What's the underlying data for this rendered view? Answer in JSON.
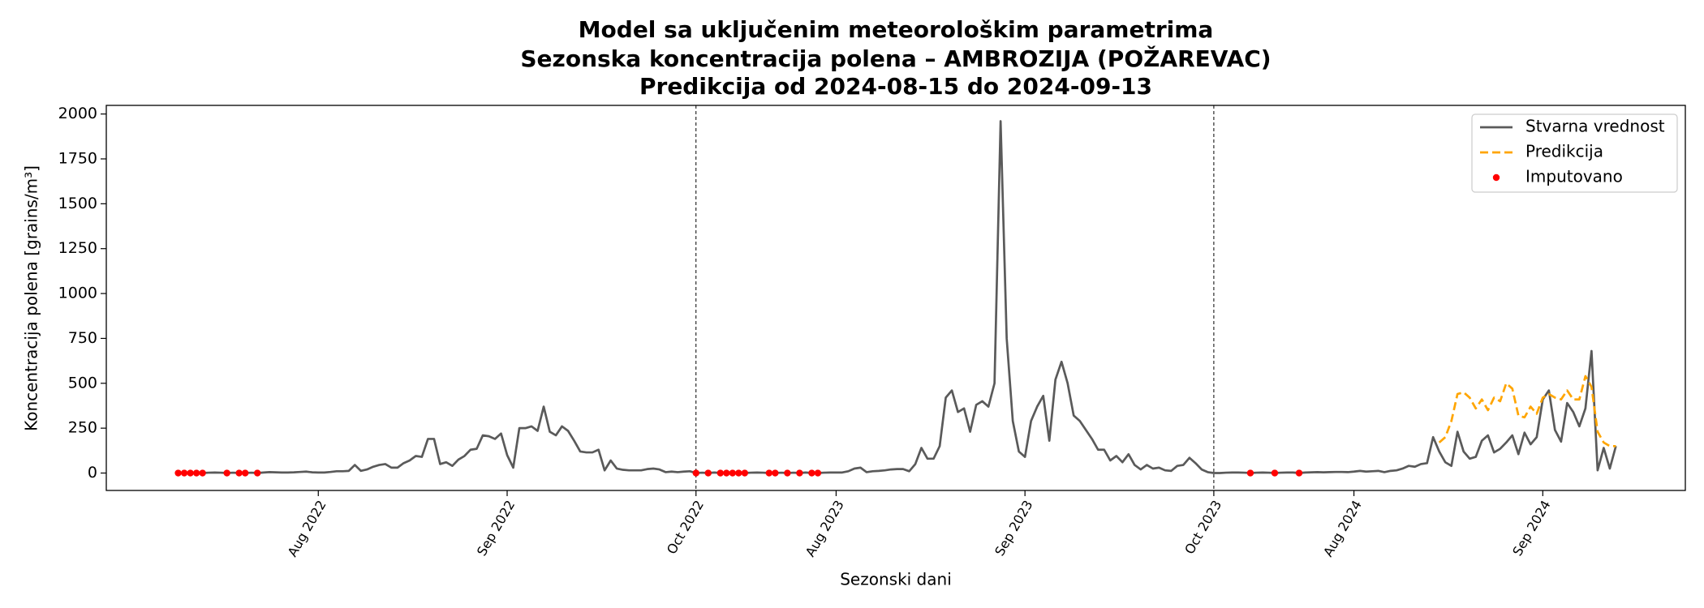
{
  "chart_data": {
    "type": "line",
    "title_lines": [
      "Model sa uključenim meteorološkim parametrima",
      "Sezonska koncentracija polena – AMBROZIJA (POŽAREVAC)",
      "Predikcija od 2024-08-15 do 2024-09-13"
    ],
    "x_label": "Sezonski dani",
    "y_label": "Koncentracija polena [grains/m³]",
    "xlim": [
      -11.8,
      247.4
    ],
    "ylim": [
      -97,
      2048
    ],
    "xticks": [
      {
        "value": 23,
        "label": "Aug 2022"
      },
      {
        "value": 54,
        "label": "Sep 2022"
      },
      {
        "value": 85,
        "label": "Oct 2022"
      },
      {
        "value": 108,
        "label": "Aug 2023"
      },
      {
        "value": 139,
        "label": "Sep 2023"
      },
      {
        "value": 170,
        "label": "Oct 2023"
      },
      {
        "value": 193,
        "label": "Aug 2024"
      },
      {
        "value": 224,
        "label": "Sep 2024"
      }
    ],
    "yticks": [
      0,
      250,
      500,
      750,
      1000,
      1250,
      1500,
      1750,
      2000
    ],
    "vlines": [
      85,
      170
    ],
    "legend": "upper right",
    "series": [
      {
        "name": "Stvarna vrednost",
        "type": "line",
        "color": "#5a5a5a",
        "x": [
          0,
          1,
          2,
          3,
          4,
          5,
          6,
          7,
          8,
          9,
          10,
          11,
          12,
          13,
          14,
          15,
          16,
          17,
          18,
          19,
          20,
          21,
          22,
          23,
          24,
          25,
          26,
          27,
          28,
          29,
          30,
          31,
          32,
          33,
          34,
          35,
          36,
          37,
          38,
          39,
          40,
          41,
          42,
          43,
          44,
          45,
          46,
          47,
          48,
          49,
          50,
          51,
          52,
          53,
          54,
          55,
          56,
          57,
          58,
          59,
          60,
          61,
          62,
          63,
          64,
          65,
          66,
          67,
          68,
          69,
          70,
          71,
          72,
          73,
          74,
          75,
          76,
          77,
          78,
          79,
          80,
          81,
          82,
          83,
          84,
          85,
          86,
          87,
          88,
          89,
          90,
          91,
          92,
          93,
          94,
          95,
          96,
          97,
          98,
          99,
          100,
          101,
          102,
          103,
          104,
          105,
          106,
          107,
          108,
          109,
          110,
          111,
          112,
          113,
          114,
          115,
          116,
          117,
          118,
          119,
          120,
          121,
          122,
          123,
          124,
          125,
          126,
          127,
          128,
          129,
          130,
          131,
          132,
          133,
          134,
          135,
          136,
          137,
          138,
          139,
          140,
          141,
          142,
          143,
          144,
          145,
          146,
          147,
          148,
          149,
          150,
          151,
          152,
          153,
          154,
          155,
          156,
          157,
          158,
          159,
          160,
          161,
          162,
          163,
          164,
          165,
          166,
          167,
          168,
          169,
          170,
          171,
          172,
          173,
          174,
          175,
          176,
          177,
          178,
          179,
          180,
          181,
          182,
          183,
          184,
          185,
          186,
          187,
          188,
          189,
          190,
          191,
          192,
          193,
          194,
          195,
          196,
          197,
          198,
          199,
          200,
          201,
          202,
          203,
          204,
          205,
          206,
          207,
          208,
          209,
          210,
          211,
          212,
          213,
          214,
          215,
          216,
          217,
          218,
          219,
          220,
          221,
          222,
          223,
          224,
          225,
          226,
          227,
          228,
          229,
          230,
          231,
          232,
          233,
          234,
          235,
          236
        ],
        "values": [
          0,
          0,
          0,
          0,
          0,
          2,
          3,
          2,
          0,
          2,
          0,
          0,
          2,
          0,
          3,
          5,
          4,
          3,
          3,
          4,
          6,
          8,
          4,
          3,
          3,
          6,
          10,
          10,
          12,
          45,
          12,
          20,
          35,
          45,
          50,
          30,
          30,
          55,
          70,
          95,
          90,
          190,
          190,
          50,
          60,
          40,
          75,
          95,
          130,
          135,
          210,
          205,
          190,
          220,
          100,
          30,
          250,
          250,
          260,
          235,
          370,
          230,
          210,
          260,
          235,
          180,
          120,
          115,
          115,
          130,
          15,
          70,
          25,
          18,
          15,
          15,
          15,
          22,
          25,
          20,
          5,
          8,
          5,
          8,
          10,
          0,
          2,
          0,
          3,
          0,
          0,
          0,
          0,
          0,
          2,
          3,
          2,
          0,
          0,
          2,
          0,
          2,
          0,
          3,
          0,
          0,
          2,
          3,
          3,
          3,
          10,
          25,
          30,
          5,
          10,
          12,
          15,
          20,
          22,
          22,
          10,
          50,
          140,
          80,
          80,
          150,
          420,
          460,
          340,
          360,
          230,
          380,
          400,
          370,
          500,
          1960,
          750,
          290,
          120,
          90,
          290,
          370,
          430,
          180,
          520,
          620,
          500,
          320,
          290,
          240,
          190,
          130,
          130,
          70,
          95,
          60,
          105,
          45,
          20,
          45,
          25,
          30,
          15,
          12,
          40,
          45,
          85,
          55,
          20,
          5,
          0,
          0,
          2,
          3,
          3,
          2,
          0,
          2,
          3,
          2,
          0,
          2,
          3,
          3,
          0,
          3,
          4,
          5,
          4,
          5,
          6,
          6,
          5,
          8,
          12,
          8,
          10,
          12,
          5,
          12,
          15,
          25,
          40,
          35,
          50,
          55,
          200,
          120,
          60,
          40,
          230,
          120,
          80,
          90,
          180,
          210,
          115,
          135,
          170,
          210,
          105,
          225,
          160,
          200,
          410,
          460,
          240,
          175,
          390,
          340,
          260,
          360,
          680,
          15,
          140,
          25,
          150
        ]
      },
      {
        "name": "Predikcija",
        "type": "dashed",
        "color": "#ffa500",
        "x": [
          207,
          208,
          209,
          210,
          211,
          212,
          213,
          214,
          215,
          216,
          217,
          218,
          219,
          220,
          221,
          222,
          223,
          224,
          225,
          226,
          227,
          228,
          229,
          230,
          231,
          232,
          233,
          234,
          235,
          236
        ],
        "values": [
          170,
          200,
          290,
          440,
          450,
          420,
          360,
          410,
          350,
          420,
          400,
          500,
          470,
          320,
          310,
          370,
          330,
          420,
          440,
          420,
          410,
          460,
          410,
          410,
          540,
          480,
          230,
          170,
          150,
          150
        ]
      },
      {
        "name": "Imputovano",
        "type": "scatter",
        "color": "#ff0000",
        "x": [
          0,
          1,
          2,
          3,
          4,
          8,
          10,
          11,
          13,
          85,
          87,
          89,
          90,
          91,
          92,
          93,
          97,
          98,
          100,
          102,
          104,
          105,
          176,
          180,
          184
        ],
        "values": [
          0,
          0,
          0,
          0,
          0,
          0,
          0,
          0,
          0,
          0,
          0,
          0,
          0,
          0,
          0,
          0,
          0,
          0,
          0,
          0,
          0,
          0,
          0,
          0,
          0
        ]
      }
    ]
  }
}
